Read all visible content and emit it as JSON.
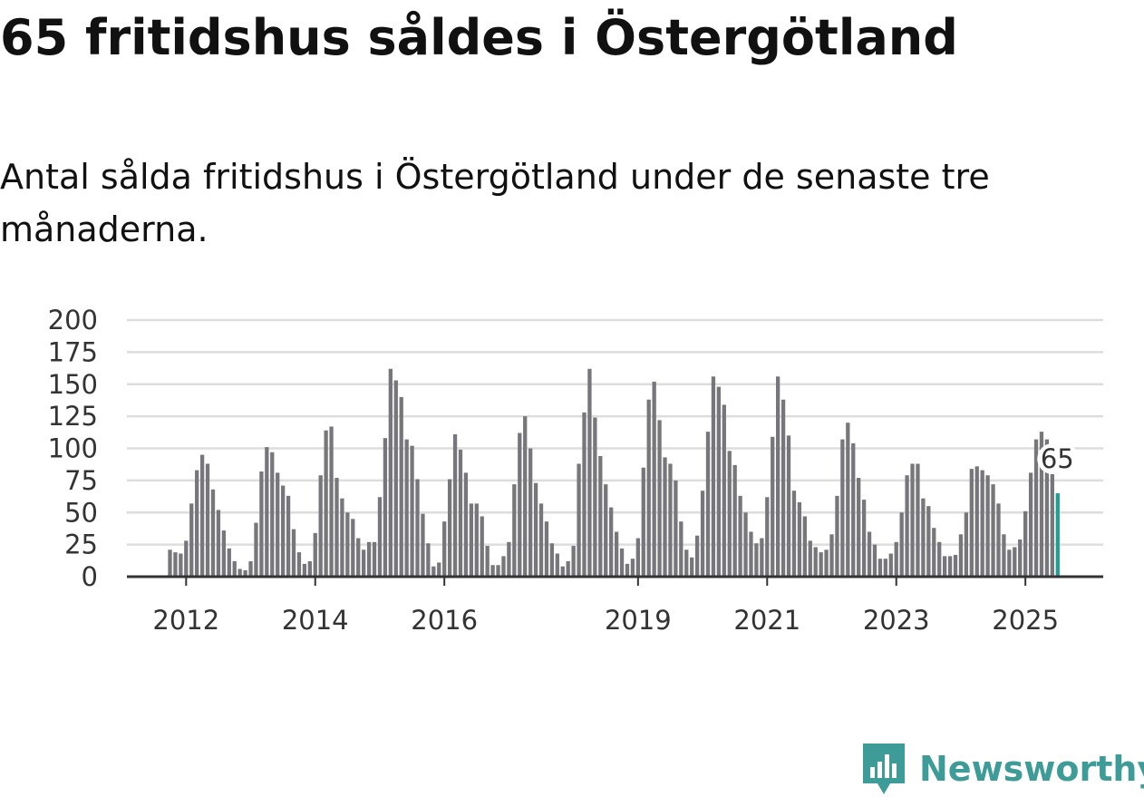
{
  "title": "65 fritidshus såldes i Östergötland",
  "subtitle": "Antal sålda fritidshus i Östergötland under de senaste tre månaderna.",
  "brand": {
    "name": "Newsworthy",
    "color": "#3d9b98",
    "icon": "newsworthy-logo-icon"
  },
  "colors": {
    "bar": "#77767b",
    "highlight": "#1f9e93",
    "grid": "#dddddd",
    "axis": "#333333"
  },
  "chart_data": {
    "type": "bar",
    "ylim": [
      0,
      200
    ],
    "yticks": [
      0,
      25,
      50,
      75,
      100,
      125,
      150,
      175,
      200
    ],
    "xtick_labels": [
      "2012",
      "2014",
      "2016",
      "2019",
      "2021",
      "2023",
      "2025"
    ],
    "xtick_month_index": [
      3,
      27,
      51,
      87,
      111,
      135,
      159
    ],
    "start": "2011-10",
    "frequency": "monthly (rolling three-month sum)",
    "grid": true,
    "highlight_label": "65",
    "values": [
      21,
      19,
      18,
      28,
      57,
      83,
      95,
      88,
      68,
      52,
      36,
      22,
      12,
      6,
      5,
      12,
      42,
      82,
      101,
      97,
      81,
      71,
      63,
      37,
      19,
      10,
      12,
      34,
      79,
      114,
      117,
      77,
      61,
      50,
      45,
      30,
      21,
      27,
      27,
      62,
      108,
      162,
      153,
      140,
      107,
      102,
      76,
      49,
      26,
      8,
      11,
      43,
      76,
      111,
      99,
      81,
      57,
      57,
      47,
      24,
      9,
      9,
      16,
      27,
      72,
      112,
      125,
      100,
      73,
      57,
      43,
      26,
      18,
      8,
      12,
      24,
      88,
      128,
      162,
      124,
      94,
      72,
      54,
      35,
      22,
      10,
      14,
      30,
      85,
      138,
      152,
      122,
      93,
      88,
      75,
      43,
      21,
      15,
      32,
      67,
      113,
      156,
      148,
      134,
      98,
      87,
      63,
      50,
      35,
      26,
      30,
      62,
      109,
      156,
      138,
      110,
      67,
      58,
      47,
      28,
      23,
      19,
      21,
      33,
      63,
      107,
      120,
      104,
      77,
      60,
      35,
      25,
      14,
      14,
      18,
      27,
      50,
      79,
      88,
      88,
      61,
      55,
      38,
      27,
      16,
      16,
      17,
      33,
      50,
      84,
      86,
      83,
      79,
      72,
      57,
      33,
      21,
      23,
      29,
      51,
      81,
      107,
      113,
      107,
      80,
      65
    ]
  }
}
